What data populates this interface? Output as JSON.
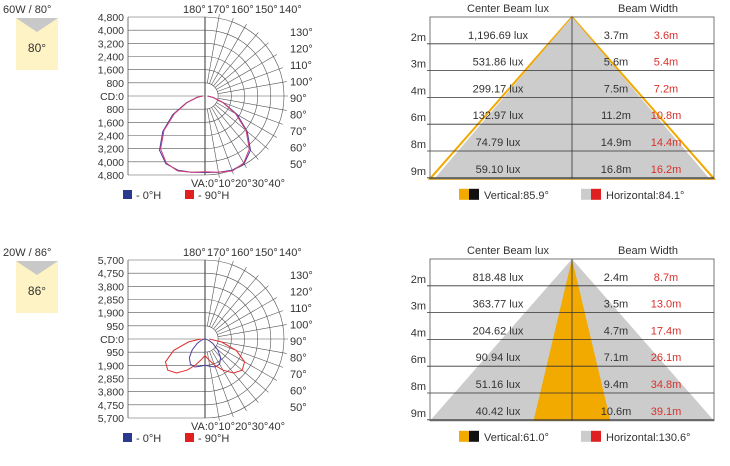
{
  "chart_data": [
    {
      "type": "polar",
      "title": "60W / 80°",
      "badge": "80°",
      "r_ticks": [
        "4,800",
        "4,000",
        "3,200",
        "2,400",
        "1,600",
        "800",
        "CD:0",
        "800",
        "1,600",
        "2,400",
        "3,200",
        "4,000",
        "4,800"
      ],
      "r_max": 4800,
      "top_labels": [
        "180°",
        "170°",
        "160°",
        "150°",
        "140°"
      ],
      "right_labels": [
        "130°",
        "120°",
        "110°",
        "100°",
        "90°",
        "80°",
        "70°",
        "60°",
        "50°"
      ],
      "va_label": "VA:0°10°20°30°40°",
      "legend": [
        {
          "label": "- 0°H",
          "color": "#2b3a8f"
        },
        {
          "label": "- 90°H",
          "color": "#e02020"
        }
      ],
      "curves": [
        {
          "name": "0°H",
          "color": "#4b3f9e",
          "points": [
            [
              0,
              4650
            ],
            [
              10,
              4700
            ],
            [
              20,
              4800
            ],
            [
              30,
              4750
            ],
            [
              40,
              4300
            ],
            [
              50,
              3350
            ],
            [
              60,
              2250
            ],
            [
              70,
              1200
            ],
            [
              80,
              500
            ],
            [
              90,
              150
            ]
          ]
        },
        {
          "name": "90°H",
          "color": "#d0407a",
          "points": [
            [
              0,
              4600
            ],
            [
              10,
              4700
            ],
            [
              20,
              4850
            ],
            [
              30,
              4700
            ],
            [
              40,
              4200
            ],
            [
              50,
              3250
            ],
            [
              60,
              2150
            ],
            [
              70,
              1150
            ],
            [
              80,
              480
            ],
            [
              90,
              140
            ]
          ]
        }
      ]
    },
    {
      "type": "beam",
      "header_left": "Center Beam lux",
      "header_right": "Beam Width",
      "rows": [
        {
          "dist": "2m",
          "lux": "1,196.69 lux",
          "v": "3.7m",
          "h": "3.6m"
        },
        {
          "dist": "3m",
          "lux": "531.86 lux",
          "v": "5.6m",
          "h": "5.4m"
        },
        {
          "dist": "4m",
          "lux": "299.17 lux",
          "v": "7.5m",
          "h": "7.2m"
        },
        {
          "dist": "6m",
          "lux": "132.97 lux",
          "v": "11.2m",
          "h": "10.8m"
        },
        {
          "dist": "8m",
          "lux": "74.79 lux",
          "v": "14.9m",
          "h": "14.4m"
        },
        {
          "dist": "9m",
          "lux": "59.10 lux",
          "v": "16.8m",
          "h": "16.2m"
        }
      ],
      "vertical_angle": 85.9,
      "horizontal_angle": 84.1,
      "legend_vertical": "Vertical:85.9°",
      "legend_horizontal": "Horizontal:84.1°",
      "colors": {
        "vertical": "#f2a900",
        "horizontal": "#cccccc",
        "outline": "#f2a900"
      }
    },
    {
      "type": "polar",
      "title": "20W / 86°",
      "badge": "86°",
      "r_ticks": [
        "5,700",
        "4,750",
        "3,800",
        "2,850",
        "1,900",
        "950",
        "CD:0",
        "950",
        "1,900",
        "2,850",
        "3,800",
        "4,750",
        "5,700"
      ],
      "r_max": 5700,
      "top_labels": [
        "180°",
        "170°",
        "160°",
        "150°",
        "140°"
      ],
      "right_labels": [
        "130°",
        "120°",
        "110°",
        "100°",
        "90°",
        "80°",
        "70°",
        "60°",
        "50°"
      ],
      "va_label": "VA:0°10°20°30°40°",
      "legend": [
        {
          "label": "- 0°H",
          "color": "#2b3a8f"
        },
        {
          "label": "- 90°H",
          "color": "#e02020"
        }
      ],
      "curves": [
        {
          "name": "0°H",
          "color": "#4b3f9e",
          "points": [
            [
              0,
              1900
            ],
            [
              10,
              2000
            ],
            [
              20,
              2150
            ],
            [
              30,
              2100
            ],
            [
              40,
              1750
            ],
            [
              50,
              1200
            ],
            [
              60,
              650
            ],
            [
              70,
              300
            ],
            [
              80,
              120
            ],
            [
              90,
              40
            ]
          ]
        },
        {
          "name": "90°H",
          "color": "#e03030",
          "points": [
            [
              0,
              1200
            ],
            [
              10,
              1500
            ],
            [
              20,
              2000
            ],
            [
              30,
              2600
            ],
            [
              40,
              3200
            ],
            [
              50,
              3500
            ],
            [
              60,
              3300
            ],
            [
              70,
              2400
            ],
            [
              80,
              1200
            ],
            [
              90,
              300
            ]
          ]
        }
      ]
    },
    {
      "type": "beam",
      "header_left": "Center Beam lux",
      "header_right": "Beam Width",
      "rows": [
        {
          "dist": "2m",
          "lux": "818.48 lux",
          "v": "2.4m",
          "h": "8.7m"
        },
        {
          "dist": "3m",
          "lux": "363.77 lux",
          "v": "3.5m",
          "h": "13.0m"
        },
        {
          "dist": "4m",
          "lux": "204.62 lux",
          "v": "4.7m",
          "h": "17.4m"
        },
        {
          "dist": "6m",
          "lux": "90.94 lux",
          "v": "7.1m",
          "h": "26.1m"
        },
        {
          "dist": "8m",
          "lux": "51.16 lux",
          "v": "9.4m",
          "h": "34.8m"
        },
        {
          "dist": "9m",
          "lux": "40.42 lux",
          "v": "10.6m",
          "h": "39.1m"
        }
      ],
      "vertical_angle": 61.0,
      "horizontal_angle": 130.6,
      "legend_vertical": "Vertical:61.0°",
      "legend_horizontal": "Horizontal:130.6°",
      "colors": {
        "vertical": "#f2a900",
        "horizontal": "#cccccc",
        "outline": "#cccccc"
      }
    }
  ]
}
